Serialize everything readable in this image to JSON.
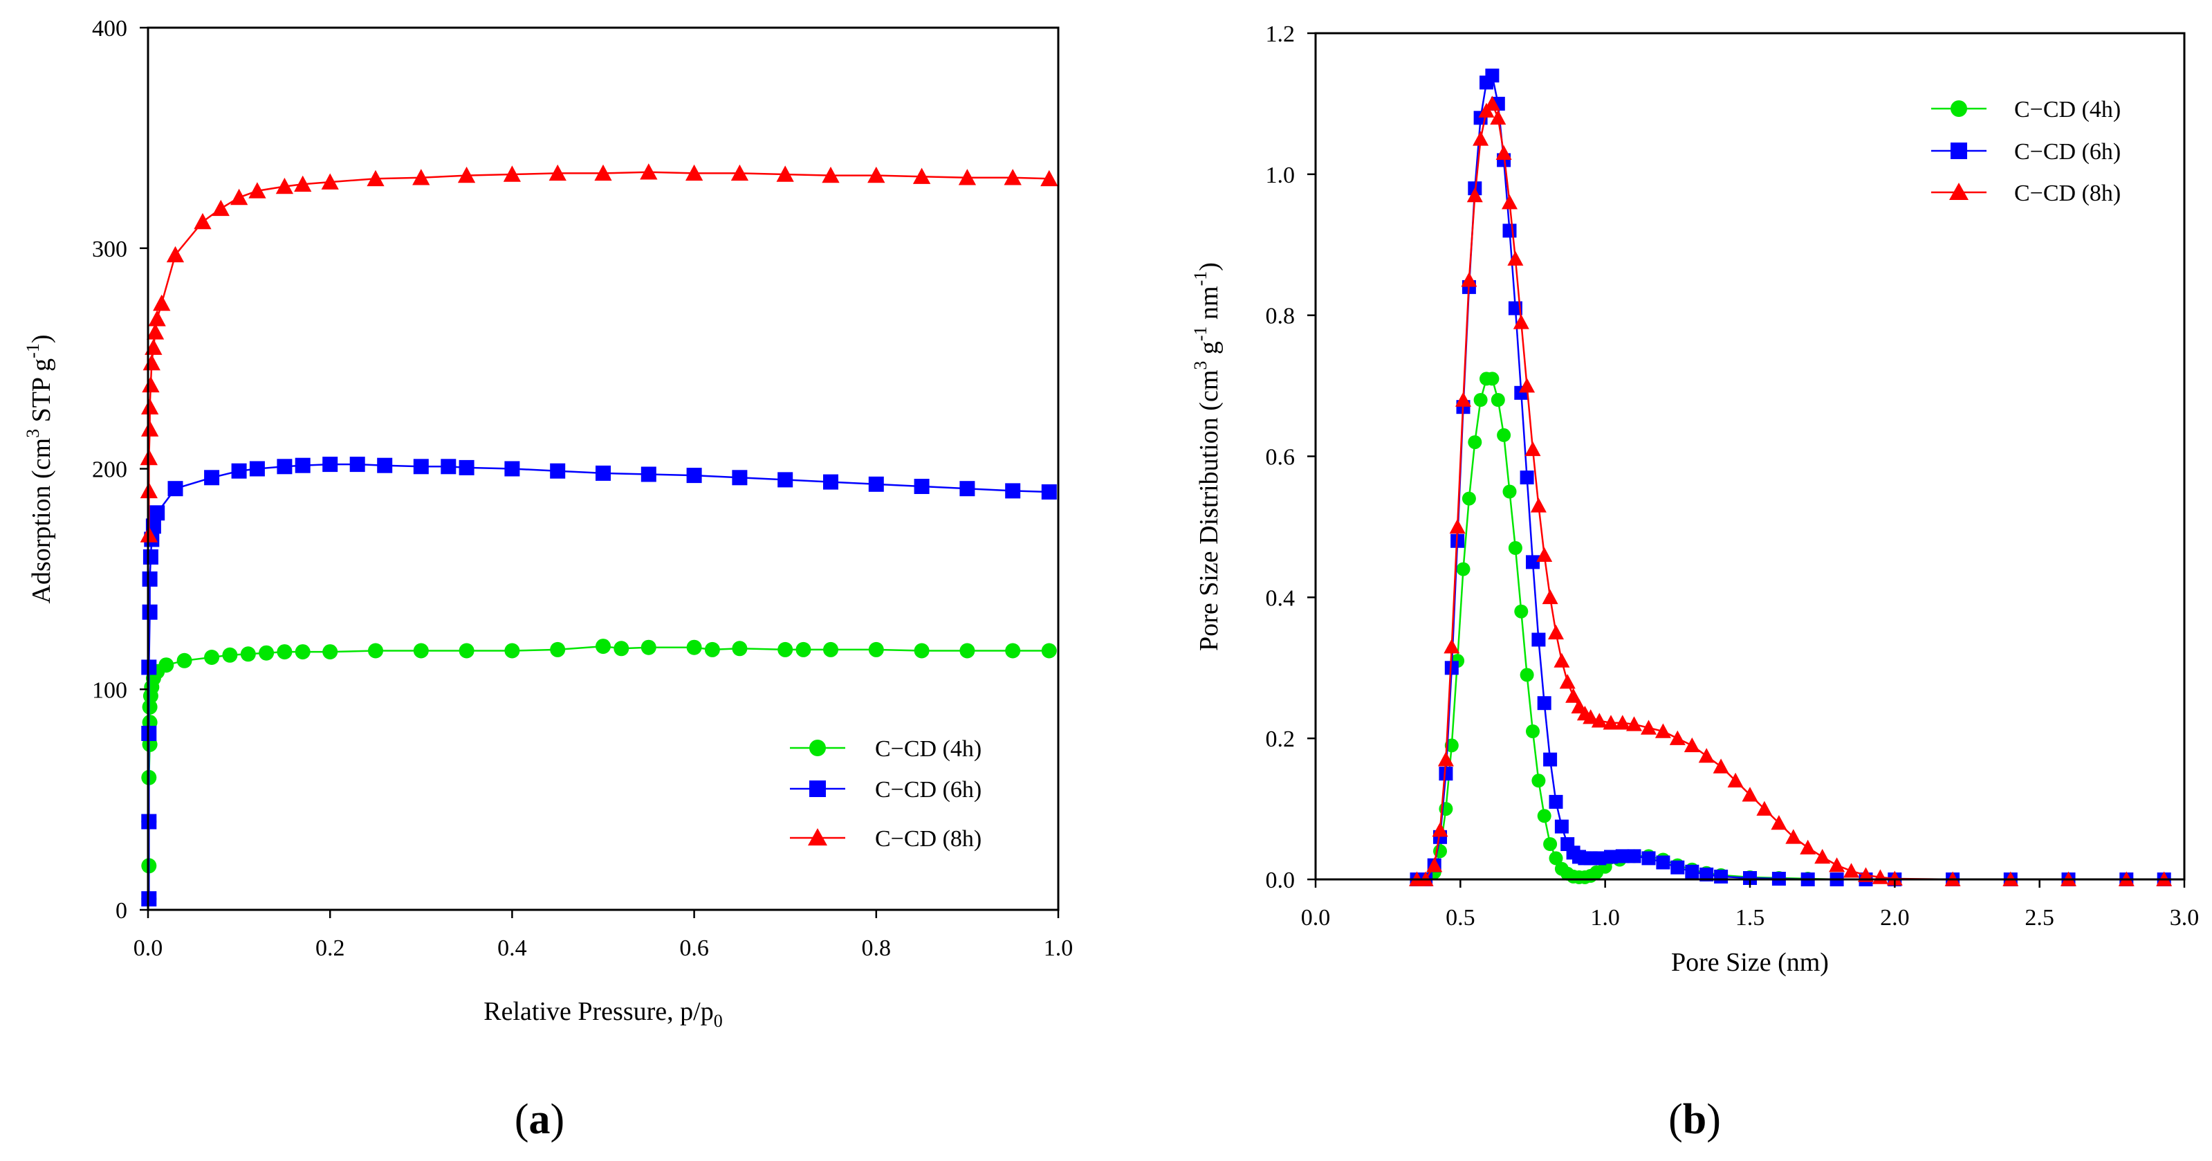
{
  "chart_data": [
    {
      "panel": "(a)",
      "panel_label": "a",
      "type": "line",
      "xlabel": "Relative Pressure, p/p",
      "xlabel_sub": "0",
      "ylabel": "Adsorption (cm",
      "ylabel_sup": "3",
      "ylabel_mid": " STP g",
      "ylabel_sup2": "-1",
      "ylabel_end": ")",
      "xlim": [
        0.0,
        1.0
      ],
      "ylim": [
        0,
        400
      ],
      "xticks": [
        0.0,
        0.2,
        0.4,
        0.6,
        0.8,
        1.0
      ],
      "xtick_labels": [
        "0.0",
        "0.2",
        "0.4",
        "0.6",
        "0.8",
        "1.0"
      ],
      "yticks": [
        0,
        100,
        200,
        300,
        400
      ],
      "ytick_labels": [
        "0",
        "100",
        "200",
        "300",
        "400"
      ],
      "grid": false,
      "legend_position": "lower-right",
      "series": [
        {
          "name": "C−CD (4h)",
          "color": "#00e600",
          "marker": "circle",
          "x": [
            0.001,
            0.001,
            0.001,
            0.001,
            0.002,
            0.002,
            0.002,
            0.003,
            0.004,
            0.006,
            0.01,
            0.02,
            0.04,
            0.07,
            0.09,
            0.11,
            0.13,
            0.15,
            0.17,
            0.2,
            0.25,
            0.3,
            0.35,
            0.4,
            0.45,
            0.5,
            0.52,
            0.55,
            0.6,
            0.62,
            0.65,
            0.7,
            0.72,
            0.75,
            0.8,
            0.85,
            0.9,
            0.95,
            0.99
          ],
          "y": [
            5,
            20,
            40,
            60,
            75,
            85,
            92,
            97,
            101,
            105,
            108,
            111,
            113,
            114.5,
            115.5,
            116,
            116.5,
            117,
            117,
            117,
            117.5,
            117.5,
            117.5,
            117.5,
            118,
            119.5,
            118.5,
            119,
            119,
            118,
            118.5,
            118,
            118,
            118,
            118,
            117.5,
            117.5,
            117.5,
            117.5
          ]
        },
        {
          "name": "C−CD (6h)",
          "color": "#0000ff",
          "marker": "square",
          "x": [
            0.001,
            0.001,
            0.001,
            0.001,
            0.002,
            0.002,
            0.003,
            0.004,
            0.006,
            0.01,
            0.03,
            0.07,
            0.1,
            0.12,
            0.15,
            0.17,
            0.2,
            0.23,
            0.26,
            0.3,
            0.33,
            0.35,
            0.4,
            0.45,
            0.5,
            0.55,
            0.6,
            0.65,
            0.7,
            0.75,
            0.8,
            0.85,
            0.9,
            0.95,
            0.99
          ],
          "y": [
            5,
            40,
            80,
            110,
            135,
            150,
            160,
            168,
            174,
            180,
            191,
            196,
            199,
            200,
            201,
            201.5,
            202,
            202,
            201.5,
            201,
            201,
            200.5,
            200,
            199,
            198,
            197.5,
            197,
            196,
            195,
            194,
            193,
            192,
            191,
            190,
            189.5
          ]
        },
        {
          "name": "C−CD (8h)",
          "color": "#ff0000",
          "marker": "triangle",
          "x": [
            0.001,
            0.001,
            0.001,
            0.002,
            0.002,
            0.003,
            0.004,
            0.006,
            0.008,
            0.01,
            0.015,
            0.03,
            0.06,
            0.08,
            0.1,
            0.12,
            0.15,
            0.17,
            0.2,
            0.25,
            0.3,
            0.35,
            0.4,
            0.45,
            0.5,
            0.55,
            0.6,
            0.65,
            0.7,
            0.75,
            0.8,
            0.85,
            0.9,
            0.95,
            0.99
          ],
          "y": [
            170,
            190,
            205,
            218,
            228,
            238,
            248,
            255,
            262,
            268,
            275,
            297,
            312,
            318,
            323,
            326,
            328,
            329,
            330,
            331.5,
            332,
            333,
            333.5,
            334,
            334,
            334.5,
            334,
            334,
            333.5,
            333,
            333,
            332.5,
            332,
            332,
            331.5
          ]
        }
      ]
    },
    {
      "panel": "(b)",
      "panel_label": "b",
      "type": "line",
      "xlabel": "Pore Size (nm)",
      "ylabel": "Pore Size Distribution (cm",
      "ylabel_sup": "3",
      "ylabel_mid": " g",
      "ylabel_sup2": "-1",
      "ylabel_mid2": " nm",
      "ylabel_sup3": "-1",
      "ylabel_end": ")",
      "xlim": [
        0.0,
        3.0
      ],
      "ylim": [
        0.0,
        1.2
      ],
      "xticks": [
        0.0,
        0.5,
        1.0,
        1.5,
        2.0,
        2.5,
        3.0
      ],
      "xtick_labels": [
        "0.0",
        "0.5",
        "1.0",
        "1.5",
        "2.0",
        "2.5",
        "3.0"
      ],
      "yticks": [
        0.0,
        0.2,
        0.4,
        0.6,
        0.8,
        1.0,
        1.2
      ],
      "ytick_labels": [
        "0.0",
        "0.2",
        "0.4",
        "0.6",
        "0.8",
        "1.0",
        "1.2"
      ],
      "grid": false,
      "legend_position": "top-right",
      "series": [
        {
          "name": "C−CD (4h)",
          "color": "#00e600",
          "marker": "circle",
          "x": [
            0.35,
            0.38,
            0.41,
            0.43,
            0.45,
            0.47,
            0.49,
            0.51,
            0.53,
            0.55,
            0.57,
            0.59,
            0.61,
            0.63,
            0.65,
            0.67,
            0.69,
            0.71,
            0.73,
            0.75,
            0.77,
            0.79,
            0.81,
            0.83,
            0.85,
            0.87,
            0.89,
            0.91,
            0.93,
            0.95,
            0.97,
            1.0,
            1.05,
            1.1,
            1.15,
            1.2,
            1.25,
            1.3,
            1.35,
            1.4,
            1.5,
            1.6,
            1.7,
            1.8,
            1.9,
            2.0,
            2.2,
            2.4,
            2.6,
            2.8,
            2.93
          ],
          "y": [
            0.0,
            0.0,
            0.01,
            0.04,
            0.1,
            0.19,
            0.31,
            0.44,
            0.54,
            0.62,
            0.68,
            0.71,
            0.71,
            0.68,
            0.63,
            0.55,
            0.47,
            0.38,
            0.29,
            0.21,
            0.14,
            0.09,
            0.05,
            0.03,
            0.015,
            0.008,
            0.004,
            0.003,
            0.003,
            0.005,
            0.01,
            0.018,
            0.028,
            0.033,
            0.033,
            0.028,
            0.02,
            0.014,
            0.009,
            0.006,
            0.003,
            0.002,
            0.001,
            0.0,
            0.0,
            0.0,
            0.0,
            0.0,
            0.0,
            0.0,
            0.0
          ]
        },
        {
          "name": "C−CD (6h)",
          "color": "#0000ff",
          "marker": "square",
          "x": [
            0.35,
            0.38,
            0.41,
            0.43,
            0.45,
            0.47,
            0.49,
            0.51,
            0.53,
            0.55,
            0.57,
            0.59,
            0.61,
            0.63,
            0.65,
            0.67,
            0.69,
            0.71,
            0.73,
            0.75,
            0.77,
            0.79,
            0.81,
            0.83,
            0.85,
            0.87,
            0.89,
            0.91,
            0.93,
            0.95,
            0.98,
            1.02,
            1.06,
            1.1,
            1.15,
            1.2,
            1.25,
            1.3,
            1.35,
            1.4,
            1.5,
            1.6,
            1.7,
            1.8,
            1.9,
            2.0,
            2.2,
            2.4,
            2.6,
            2.8,
            2.93
          ],
          "y": [
            0.0,
            0.0,
            0.02,
            0.06,
            0.15,
            0.3,
            0.48,
            0.67,
            0.84,
            0.98,
            1.08,
            1.13,
            1.14,
            1.1,
            1.02,
            0.92,
            0.81,
            0.69,
            0.57,
            0.45,
            0.34,
            0.25,
            0.17,
            0.11,
            0.075,
            0.05,
            0.038,
            0.032,
            0.03,
            0.03,
            0.03,
            0.032,
            0.033,
            0.033,
            0.03,
            0.024,
            0.017,
            0.011,
            0.007,
            0.004,
            0.002,
            0.001,
            0.0,
            0.0,
            0.0,
            0.0,
            0.0,
            0.0,
            0.0,
            0.0,
            0.0
          ]
        },
        {
          "name": "C−CD (8h)",
          "color": "#ff0000",
          "marker": "triangle",
          "x": [
            0.35,
            0.38,
            0.41,
            0.43,
            0.45,
            0.47,
            0.49,
            0.51,
            0.53,
            0.55,
            0.57,
            0.59,
            0.61,
            0.63,
            0.65,
            0.67,
            0.69,
            0.71,
            0.73,
            0.75,
            0.77,
            0.79,
            0.81,
            0.83,
            0.85,
            0.87,
            0.89,
            0.91,
            0.93,
            0.95,
            0.98,
            1.02,
            1.06,
            1.1,
            1.15,
            1.2,
            1.25,
            1.3,
            1.35,
            1.4,
            1.45,
            1.5,
            1.55,
            1.6,
            1.65,
            1.7,
            1.75,
            1.8,
            1.85,
            1.9,
            1.95,
            2.0,
            2.2,
            2.4,
            2.6,
            2.8,
            2.93
          ],
          "y": [
            0.0,
            0.0,
            0.02,
            0.07,
            0.17,
            0.33,
            0.5,
            0.68,
            0.85,
            0.97,
            1.05,
            1.09,
            1.1,
            1.08,
            1.03,
            0.96,
            0.88,
            0.79,
            0.7,
            0.61,
            0.53,
            0.46,
            0.4,
            0.35,
            0.31,
            0.28,
            0.26,
            0.245,
            0.235,
            0.23,
            0.225,
            0.222,
            0.222,
            0.22,
            0.215,
            0.21,
            0.2,
            0.19,
            0.175,
            0.16,
            0.14,
            0.12,
            0.1,
            0.08,
            0.06,
            0.045,
            0.032,
            0.02,
            0.012,
            0.006,
            0.003,
            0.001,
            0.0,
            0.0,
            0.0,
            0.0,
            0.0
          ]
        }
      ]
    }
  ]
}
